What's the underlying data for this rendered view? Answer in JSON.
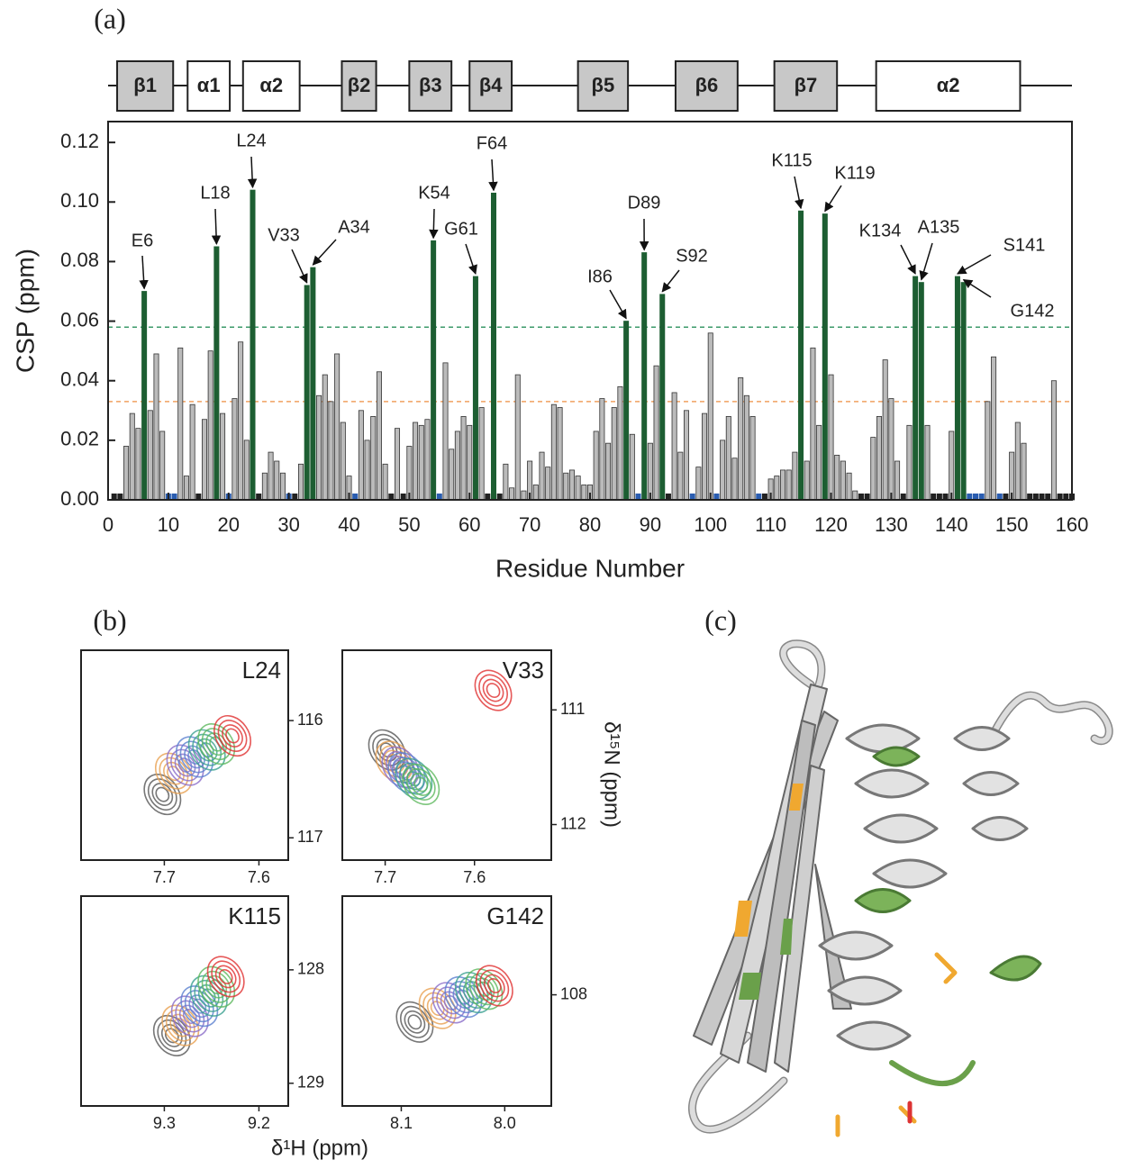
{
  "panel_labels": [
    "(a)",
    "(b)",
    "(c)"
  ],
  "shared_axes": {
    "xlabel": "δ¹H (ppm)",
    "ylabel": "δ¹⁵N (ppm)"
  },
  "chart_data": [
    {
      "type": "bar",
      "xlabel": "Residue Number",
      "ylabel": "CSP (ppm)",
      "xlim": [
        0,
        160
      ],
      "xticks": [
        0,
        10,
        20,
        30,
        40,
        50,
        60,
        70,
        80,
        90,
        100,
        110,
        120,
        130,
        140,
        150,
        160
      ],
      "ylim": [
        0,
        0.127
      ],
      "yticks": [
        {
          "value": 0,
          "label": "0.00"
        },
        {
          "value": 0.02,
          "label": "0.02"
        },
        {
          "value": 0.04,
          "label": "0.04"
        },
        {
          "value": 0.06,
          "label": "0.06"
        },
        {
          "value": 0.08,
          "label": "0.08"
        },
        {
          "value": 0.1,
          "label": "0.10"
        },
        {
          "value": 0.12,
          "label": "0.12"
        }
      ],
      "x": [
        1,
        2,
        3,
        4,
        5,
        6,
        7,
        8,
        9,
        10,
        11,
        12,
        13,
        14,
        15,
        16,
        17,
        18,
        19,
        20,
        21,
        22,
        23,
        24,
        25,
        26,
        27,
        28,
        29,
        30,
        31,
        32,
        33,
        34,
        35,
        36,
        37,
        38,
        39,
        40,
        41,
        42,
        43,
        44,
        45,
        46,
        47,
        48,
        49,
        50,
        51,
        52,
        53,
        54,
        55,
        56,
        57,
        58,
        59,
        60,
        61,
        62,
        63,
        64,
        65,
        66,
        67,
        68,
        69,
        70,
        71,
        72,
        73,
        74,
        75,
        76,
        77,
        78,
        79,
        80,
        81,
        82,
        83,
        84,
        85,
        86,
        87,
        88,
        89,
        90,
        91,
        92,
        93,
        94,
        95,
        96,
        97,
        98,
        99,
        100,
        101,
        102,
        103,
        104,
        105,
        106,
        107,
        108,
        109,
        110,
        111,
        112,
        113,
        114,
        115,
        116,
        117,
        118,
        119,
        120,
        121,
        122,
        123,
        124,
        125,
        126,
        127,
        128,
        129,
        130,
        131,
        132,
        133,
        134,
        135,
        136,
        137,
        138,
        139,
        140,
        141,
        142,
        143,
        144,
        145,
        146,
        147,
        148,
        149,
        150,
        151,
        152,
        153,
        154,
        155,
        156,
        157,
        158,
        159,
        160
      ],
      "values": [
        0.002,
        0.002,
        0.018,
        0.029,
        0.024,
        0.07,
        0.03,
        0.049,
        0.023,
        0.002,
        0.002,
        0.051,
        0.008,
        0.032,
        0.002,
        0.027,
        0.05,
        0.085,
        0.029,
        0.002,
        0.034,
        0.053,
        0.02,
        0.104,
        0.002,
        0.009,
        0.016,
        0.013,
        0.009,
        0.002,
        0.002,
        0.012,
        0.072,
        0.078,
        0.035,
        0.042,
        0.033,
        0.049,
        0.026,
        0.008,
        0.002,
        0.03,
        0.02,
        0.028,
        0.043,
        0.012,
        0.002,
        0.024,
        0.002,
        0.018,
        0.026,
        0.025,
        0.027,
        0.087,
        0.002,
        0.046,
        0.017,
        0.023,
        0.028,
        0.025,
        0.075,
        0.031,
        0.002,
        0.103,
        0.002,
        0.012,
        0.004,
        0.042,
        0.003,
        0.013,
        0.005,
        0.016,
        0.011,
        0.032,
        0.031,
        0.009,
        0.01,
        0.008,
        0.005,
        0.005,
        0.023,
        0.034,
        0.019,
        0.031,
        0.038,
        0.06,
        0.022,
        0.002,
        0.083,
        0.019,
        0.045,
        0.069,
        0.002,
        0.036,
        0.016,
        0.03,
        0.002,
        0.011,
        0.029,
        0.056,
        0.002,
        0.02,
        0.028,
        0.014,
        0.041,
        0.035,
        0.028,
        0.002,
        0.002,
        0.007,
        0.008,
        0.01,
        0.01,
        0.016,
        0.097,
        0.013,
        0.051,
        0.025,
        0.096,
        0.042,
        0.015,
        0.013,
        0.009,
        0.003,
        0.002,
        0.002,
        0.021,
        0.028,
        0.047,
        0.034,
        0.013,
        0.002,
        0.025,
        0.075,
        0.073,
        0.025,
        0.002,
        0.002,
        0.002,
        0.023,
        0.075,
        0.073,
        0.002,
        0.002,
        0.002,
        0.033,
        0.048,
        0.002,
        0.002,
        0.016,
        0.026,
        0.019,
        0.002,
        0.002,
        0.002,
        0.002,
        0.04,
        0.002,
        0.002,
        0.002
      ],
      "colors": [
        "#222",
        "#222",
        "#bbb",
        "#bbb",
        "#bbb",
        "#1d5e32",
        "#bbb",
        "#bbb",
        "#bbb",
        "#2a5db0",
        "#2a5db0",
        "#bbb",
        "#bbb",
        "#bbb",
        "#222",
        "#bbb",
        "#bbb",
        "#1d5e32",
        "#bbb",
        "#2a5db0",
        "#bbb",
        "#bbb",
        "#bbb",
        "#1d5e32",
        "#222",
        "#bbb",
        "#bbb",
        "#bbb",
        "#bbb",
        "#2a5db0",
        "#222",
        "#bbb",
        "#1d5e32",
        "#1d5e32",
        "#bbb",
        "#bbb",
        "#bbb",
        "#bbb",
        "#bbb",
        "#bbb",
        "#2a5db0",
        "#bbb",
        "#bbb",
        "#bbb",
        "#bbb",
        "#bbb",
        "#222",
        "#bbb",
        "#222",
        "#bbb",
        "#bbb",
        "#bbb",
        "#bbb",
        "#1d5e32",
        "#2a5db0",
        "#bbb",
        "#bbb",
        "#bbb",
        "#bbb",
        "#bbb",
        "#1d5e32",
        "#bbb",
        "#222",
        "#1d5e32",
        "#222",
        "#bbb",
        "#bbb",
        "#bbb",
        "#bbb",
        "#bbb",
        "#bbb",
        "#bbb",
        "#bbb",
        "#bbb",
        "#bbb",
        "#bbb",
        "#bbb",
        "#bbb",
        "#bbb",
        "#bbb",
        "#bbb",
        "#bbb",
        "#bbb",
        "#bbb",
        "#bbb",
        "#1d5e32",
        "#bbb",
        "#2a5db0",
        "#1d5e32",
        "#bbb",
        "#bbb",
        "#1d5e32",
        "#222",
        "#bbb",
        "#bbb",
        "#bbb",
        "#2a5db0",
        "#bbb",
        "#bbb",
        "#bbb",
        "#2a5db0",
        "#bbb",
        "#bbb",
        "#bbb",
        "#bbb",
        "#bbb",
        "#bbb",
        "#2a5db0",
        "#222",
        "#bbb",
        "#bbb",
        "#bbb",
        "#bbb",
        "#bbb",
        "#1d5e32",
        "#bbb",
        "#bbb",
        "#bbb",
        "#1d5e32",
        "#bbb",
        "#bbb",
        "#bbb",
        "#bbb",
        "#bbb",
        "#222",
        "#222",
        "#bbb",
        "#bbb",
        "#bbb",
        "#bbb",
        "#bbb",
        "#222",
        "#bbb",
        "#1d5e32",
        "#1d5e32",
        "#bbb",
        "#222",
        "#222",
        "#222",
        "#bbb",
        "#1d5e32",
        "#1d5e32",
        "#2a5db0",
        "#2a5db0",
        "#2a5db0",
        "#bbb",
        "#bbb",
        "#2a5db0",
        "#222",
        "#bbb",
        "#bbb",
        "#bbb",
        "#222",
        "#222",
        "#222",
        "#222",
        "#bbb",
        "#222",
        "#222",
        "#222"
      ],
      "hlines": [
        {
          "value": 0.058,
          "color": "#3c9a6a"
        },
        {
          "value": 0.033,
          "color": "#f0a060"
        }
      ],
      "annotations": [
        {
          "label": "E6",
          "x": 6
        },
        {
          "label": "L18",
          "x": 18
        },
        {
          "label": "L24",
          "x": 24
        },
        {
          "label": "V33",
          "x": 33
        },
        {
          "label": "A34",
          "x": 34
        },
        {
          "label": "K54",
          "x": 54
        },
        {
          "label": "G61",
          "x": 61
        },
        {
          "label": "F64",
          "x": 64
        },
        {
          "label": "I86",
          "x": 86
        },
        {
          "label": "D89",
          "x": 89
        },
        {
          "label": "S92",
          "x": 92
        },
        {
          "label": "K115",
          "x": 115
        },
        {
          "label": "K119",
          "x": 119
        },
        {
          "label": "K134",
          "x": 134
        },
        {
          "label": "A135",
          "x": 135
        },
        {
          "label": "S141",
          "x": 141
        },
        {
          "label": "G142",
          "x": 142
        }
      ],
      "secondary_structure": [
        {
          "label": "β1",
          "start": 1.5,
          "end": 10.8,
          "color": "#c8c8c8"
        },
        {
          "label": "α1",
          "start": 13.2,
          "end": 20.2,
          "color": "#ffffff"
        },
        {
          "label": "α2",
          "start": 22.4,
          "end": 31.8,
          "color": "#ffffff"
        },
        {
          "label": "β2",
          "start": 38.8,
          "end": 44.5,
          "color": "#c8c8c8"
        },
        {
          "label": "β3",
          "start": 50,
          "end": 57,
          "color": "#c8c8c8"
        },
        {
          "label": "β4",
          "start": 60,
          "end": 67,
          "color": "#c8c8c8"
        },
        {
          "label": "β5",
          "start": 78,
          "end": 86.3,
          "color": "#c8c8c8"
        },
        {
          "label": "β6",
          "start": 94.2,
          "end": 104.5,
          "color": "#c8c8c8"
        },
        {
          "label": "β7",
          "start": 110.6,
          "end": 121,
          "color": "#c8c8c8"
        },
        {
          "label": "α2",
          "start": 127.5,
          "end": 151.4,
          "color": "#ffffff"
        }
      ]
    },
    {
      "type": "contour",
      "title": "L24",
      "x_reversed": true,
      "y_reversed": true,
      "xlim": [
        7.569,
        7.788
      ],
      "xticks": [
        7.7,
        7.6
      ],
      "ylim": [
        115.4,
        117.19
      ],
      "yticks": [
        116,
        117
      ],
      "peaks": {
        "x": [
          7.702,
          7.69,
          7.678,
          7.668,
          7.655,
          7.645,
          7.628
        ],
        "y": [
          116.63,
          116.45,
          116.38,
          116.31,
          116.25,
          116.2,
          116.13
        ],
        "colors": [
          "#555555",
          "#e8a050",
          "#8a6bc8",
          "#5a7fd0",
          "#3aa090",
          "#5cb85c",
          "#e03030"
        ]
      }
    },
    {
      "type": "contour",
      "title": "V33",
      "x_reversed": true,
      "y_reversed": true,
      "xlim": [
        7.514,
        7.748
      ],
      "xticks": [
        7.7,
        7.6
      ],
      "ylim": [
        110.48,
        112.31
      ],
      "yticks": [
        111,
        112
      ],
      "peaks": {
        "x": [
          7.698,
          7.69,
          7.683,
          7.676,
          7.668,
          7.66,
          7.579
        ],
        "y": [
          111.35,
          111.45,
          111.5,
          111.55,
          111.6,
          111.65,
          110.83
        ],
        "colors": [
          "#555555",
          "#e8a050",
          "#8a6bc8",
          "#5a7fd0",
          "#3aa090",
          "#5cb85c",
          "#e03030"
        ]
      }
    },
    {
      "type": "contour",
      "title": "K115",
      "x_reversed": true,
      "y_reversed": true,
      "xlim": [
        9.169,
        9.388
      ],
      "xticks": [
        9.3,
        9.2
      ],
      "ylim": [
        127.35,
        129.2
      ],
      "yticks": [
        128,
        129
      ],
      "peaks": {
        "x": [
          9.292,
          9.283,
          9.273,
          9.263,
          9.253,
          9.245,
          9.235
        ],
        "y": [
          128.58,
          128.49,
          128.41,
          128.32,
          128.23,
          128.15,
          128.06
        ],
        "colors": [
          "#555555",
          "#e8a050",
          "#8a6bc8",
          "#5a7fd0",
          "#3aa090",
          "#5cb85c",
          "#e03030"
        ]
      }
    },
    {
      "type": "contour",
      "title": "G142",
      "x_reversed": true,
      "y_reversed": true,
      "xlim": [
        7.955,
        8.157
      ],
      "xticks": [
        8.1,
        {
          "value": 8,
          "label": "8.0"
        }
      ],
      "ylim": [
        107.13,
        108.98
      ],
      "yticks": [
        108
      ],
      "peaks": {
        "x": [
          8.087,
          8.065,
          8.052,
          8.04,
          8.03,
          8.02,
          8.01
        ],
        "y": [
          108.24,
          108.12,
          108.07,
          108.02,
          107.98,
          107.95,
          107.92
        ],
        "colors": [
          "#555555",
          "#e8a050",
          "#8a6bc8",
          "#5a7fd0",
          "#3aa090",
          "#5cb85c",
          "#e03030"
        ]
      }
    }
  ]
}
